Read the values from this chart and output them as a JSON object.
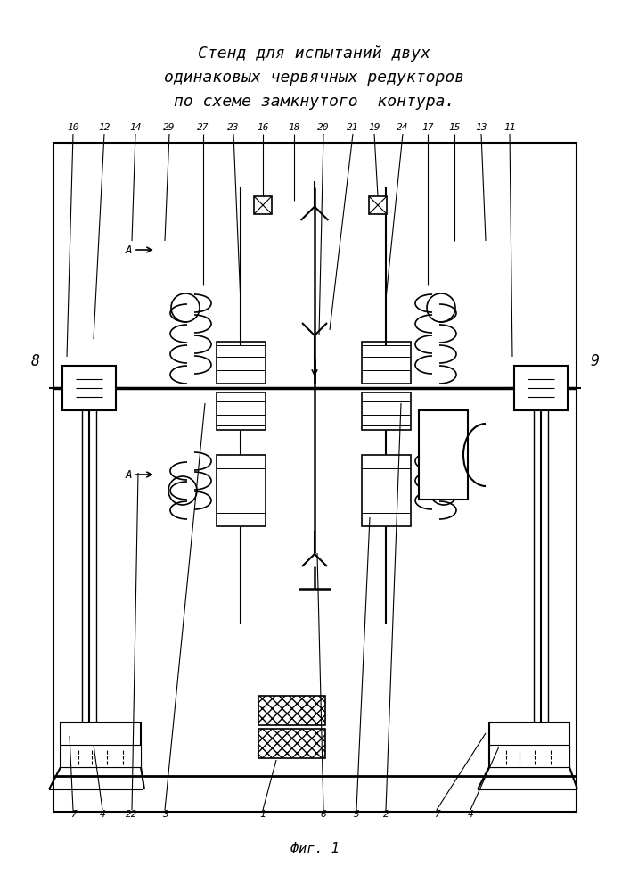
{
  "title_lines": [
    "Стенд для испытаний двух",
    "одинаковых червячных редукторов",
    "по схеме замкнутого  контура."
  ],
  "caption": "Фиг. 1",
  "bg_color": "#ffffff",
  "line_color": "#000000"
}
